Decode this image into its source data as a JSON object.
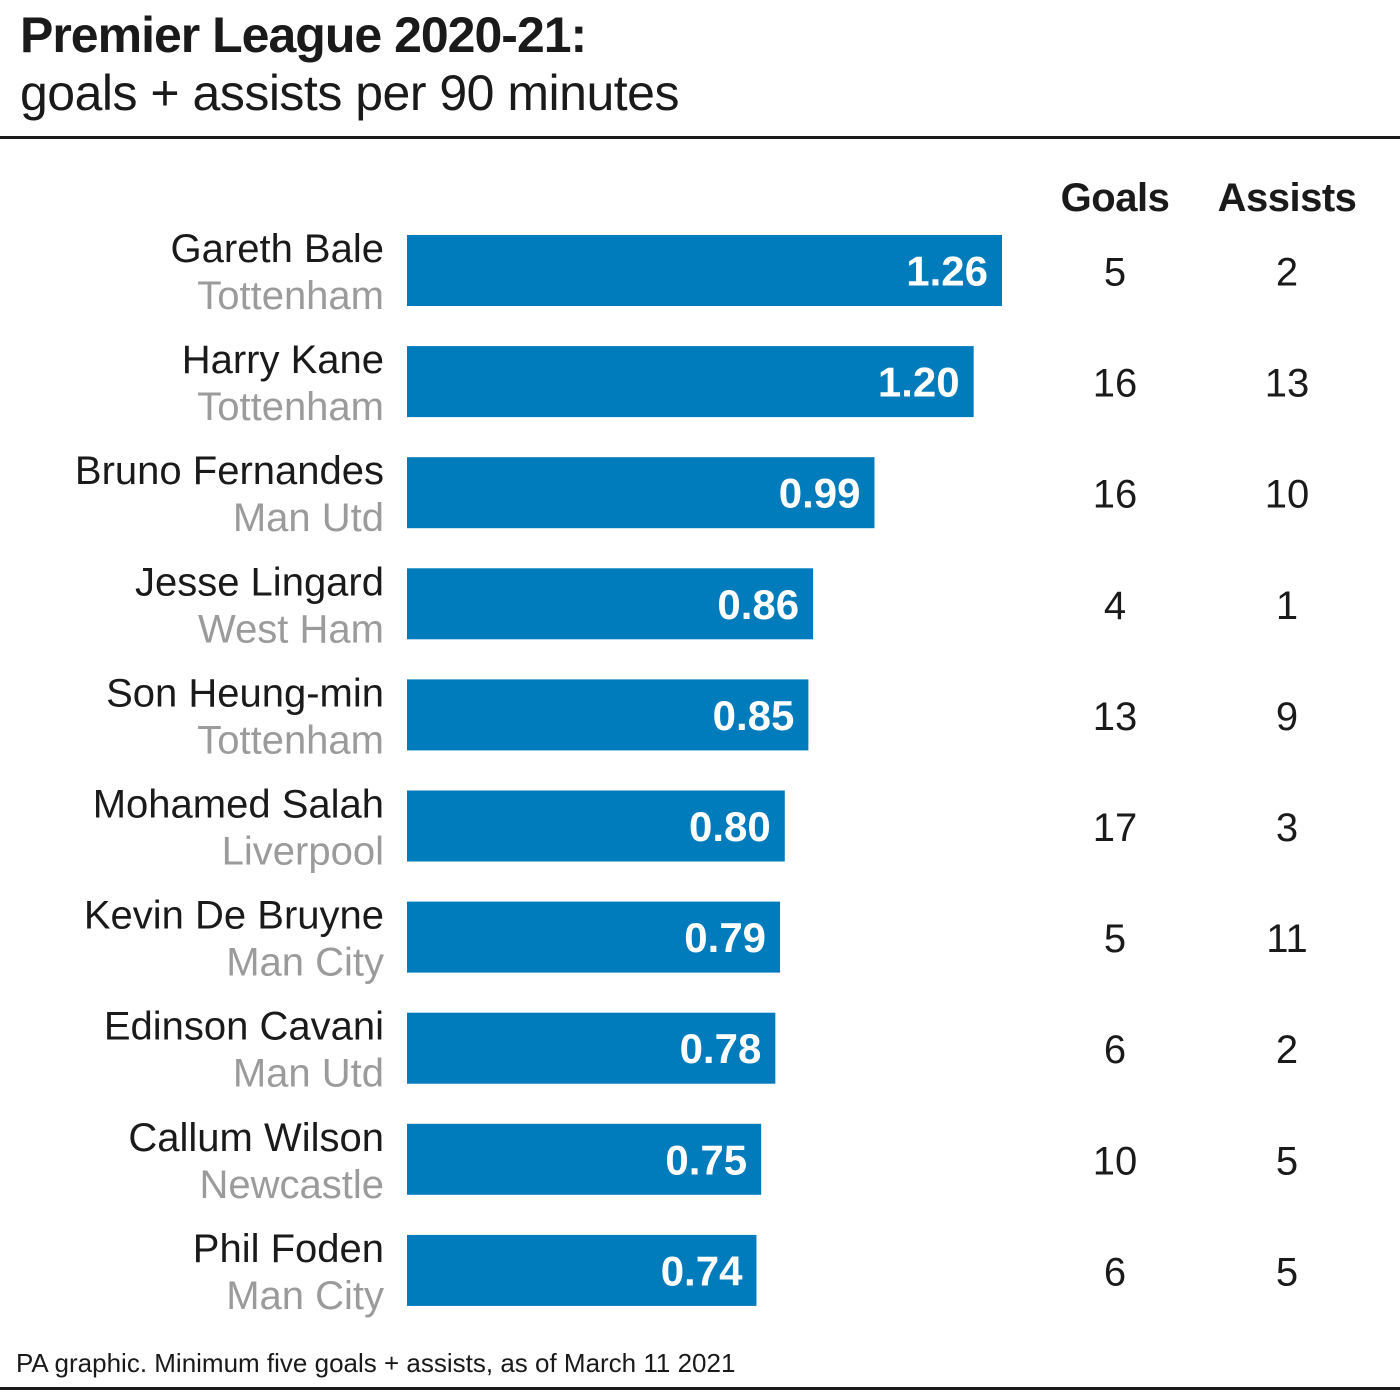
{
  "header": {
    "title": "Premier League 2020-21:",
    "subtitle": "goals + assists per 90 minutes"
  },
  "columns": {
    "goals": "Goals",
    "assists": "Assists"
  },
  "footer": "PA graphic. Minimum five goals + assists, as of March 11 2021",
  "colors": {
    "bar": "#007bbb",
    "team": "#9b9b9b",
    "text": "#1a1a1a",
    "value_label": "#ffffff"
  },
  "chart_data": {
    "type": "bar",
    "orientation": "horizontal",
    "title": "Premier League 2020-21:",
    "subtitle": "goals + assists per 90 minutes",
    "xlim": [
      0,
      1.26
    ],
    "grid": false,
    "categories": [
      "Gareth Bale",
      "Harry Kane",
      "Bruno Fernandes",
      "Jesse Lingard",
      "Son Heung-min",
      "Mohamed Salah",
      "Kevin De Bruyne",
      "Edinson Cavani",
      "Callum Wilson",
      "Phil Foden"
    ],
    "teams": [
      "Tottenham",
      "Tottenham",
      "Man Utd",
      "West Ham",
      "Tottenham",
      "Liverpool",
      "Man City",
      "Man Utd",
      "Newcastle",
      "Man City"
    ],
    "values": [
      1.26,
      1.2,
      0.99,
      0.86,
      0.85,
      0.8,
      0.79,
      0.78,
      0.75,
      0.74
    ],
    "value_labels": [
      "1.26",
      "1.20",
      "0.99",
      "0.86",
      "0.85",
      "0.80",
      "0.79",
      "0.78",
      "0.75",
      "0.74"
    ],
    "goals": [
      5,
      16,
      16,
      4,
      13,
      17,
      5,
      6,
      10,
      6
    ],
    "assists": [
      2,
      13,
      10,
      1,
      9,
      3,
      11,
      2,
      5,
      5
    ]
  }
}
